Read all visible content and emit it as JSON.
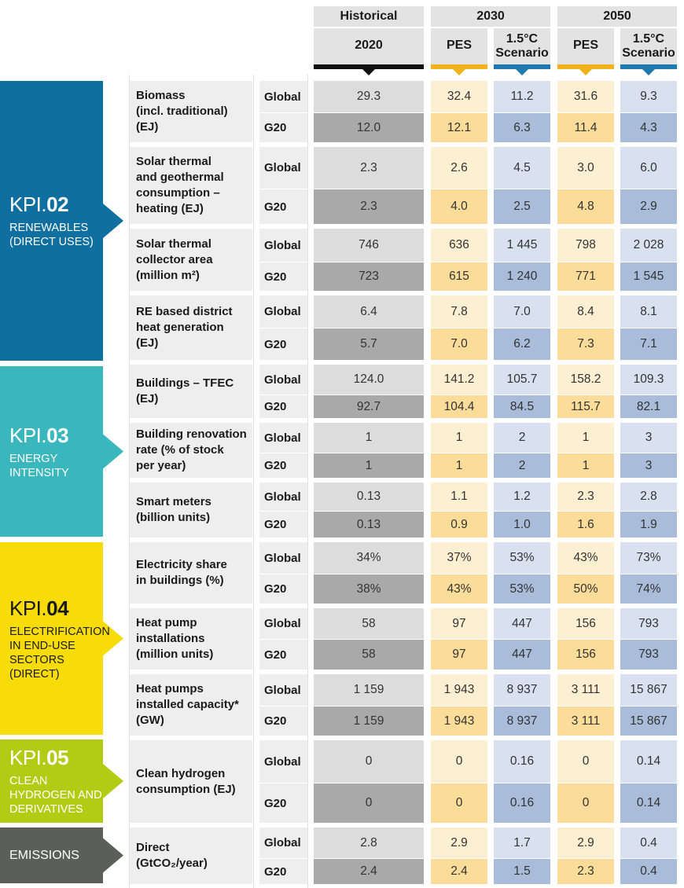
{
  "header": {
    "historical": "Historical",
    "y2030": "2030",
    "y2050": "2050",
    "year2020": "2020",
    "pes": "PES",
    "scenario_1_5": "1.5°C\nScenario"
  },
  "colors": {
    "historical": "#dcdcdc",
    "historical_dark": "#a9a9a9",
    "pes": "#fdf0d2",
    "pes_dark": "#fbdc99",
    "scen": "#d9e1f0",
    "scen_dark": "#a9bcd9",
    "label_bg": "#eeeeee",
    "kpi02": "#0f6fa0",
    "kpi03": "#3ab6bd",
    "kpi04": "#f7dc0a",
    "kpi05": "#b2cc16",
    "emissions": "#5a5f5a",
    "marker_black": "#111111",
    "marker_pes": "#f2b21b",
    "marker_scen": "#1f79ad"
  },
  "kpis": [
    {
      "prefix": "KPI.",
      "number": "02",
      "sub": "RENEWABLES\n(DIRECT USES)"
    },
    {
      "prefix": "KPI.",
      "number": "03",
      "sub": "ENERGY\nINTENSITY"
    },
    {
      "prefix": "KPI.",
      "number": "04",
      "sub": "ELECTRIFICATION\nIN END-USE\nSECTORS\n(DIRECT)"
    },
    {
      "prefix": "KPI.",
      "number": "05",
      "sub": "CLEAN\nHYDROGEN AND\nDERIVATIVES"
    },
    {
      "prefix": "",
      "number": "",
      "sub": "EMISSIONS"
    }
  ],
  "metrics": [
    {
      "label": "Biomass\n(incl. traditional)\n(EJ)",
      "global": [
        "29.3",
        "32.4",
        "11.2",
        "31.6",
        "9.3"
      ],
      "g20": [
        "12.0",
        "12.1",
        "6.3",
        "11.4",
        "4.3"
      ]
    },
    {
      "label": "Solar thermal\nand geothermal\nconsumption –\nheating (EJ)",
      "global": [
        "2.3",
        "2.6",
        "4.5",
        "3.0",
        "6.0"
      ],
      "g20": [
        "2.3",
        "4.0",
        "2.5",
        "4.8",
        "2.9"
      ]
    },
    {
      "label": "Solar thermal\ncollector area\n(million m²)",
      "global": [
        "746",
        "636",
        "1 445",
        "798",
        "2 028"
      ],
      "g20": [
        "723",
        "615",
        "1 240",
        "771",
        "1 545"
      ]
    },
    {
      "label": "RE based district\nheat generation\n(EJ)",
      "global": [
        "6.4",
        "7.8",
        "7.0",
        "8.4",
        "8.1"
      ],
      "g20": [
        "5.7",
        "7.0",
        "6.2",
        "7.3",
        "7.1"
      ]
    },
    {
      "label": "Buildings – TFEC\n(EJ)",
      "global": [
        "124.0",
        "141.2",
        "105.7",
        "158.2",
        "109.3"
      ],
      "g20": [
        "92.7",
        "104.4",
        "84.5",
        "115.7",
        "82.1"
      ]
    },
    {
      "label": "Building renovation\nrate (% of stock\nper year)",
      "global": [
        "1",
        "1",
        "2",
        "1",
        "3"
      ],
      "g20": [
        "1",
        "1",
        "2",
        "1",
        "3"
      ]
    },
    {
      "label": "Smart meters\n(billion units)",
      "global": [
        "0.13",
        "1.1",
        "1.2",
        "2.3",
        "2.8"
      ],
      "g20": [
        "0.13",
        "0.9",
        "1.0",
        "1.6",
        "1.9"
      ]
    },
    {
      "label": "Electricity share\nin buildings (%)",
      "global": [
        "34%",
        "37%",
        "53%",
        "43%",
        "73%"
      ],
      "g20": [
        "38%",
        "43%",
        "53%",
        "50%",
        "74%"
      ]
    },
    {
      "label": "Heat pump\ninstallations\n(million units)",
      "global": [
        "58",
        "97",
        "447",
        "156",
        "793"
      ],
      "g20": [
        "58",
        "97",
        "447",
        "156",
        "793"
      ]
    },
    {
      "label": "Heat pumps\ninstalled capacity*\n(GW)",
      "global": [
        "1 159",
        "1 943",
        "8 937",
        "3 111",
        "15 867"
      ],
      "g20": [
        "1 159",
        "1 943",
        "8 937",
        "3 111",
        "15 867"
      ]
    },
    {
      "label": "Clean hydrogen\nconsumption (EJ)",
      "global": [
        "0",
        "0",
        "0.16",
        "0",
        "0.14"
      ],
      "g20": [
        "0",
        "0",
        "0.16",
        "0",
        "0.14"
      ]
    },
    {
      "label": "Direct\n(GtCO₂/year)",
      "global": [
        "2.8",
        "2.9",
        "1.7",
        "2.9",
        "0.4"
      ],
      "g20": [
        "2.4",
        "2.4",
        "1.5",
        "2.3",
        "0.4"
      ]
    }
  ],
  "scope_labels": {
    "global": "Global",
    "g20": "G20"
  }
}
